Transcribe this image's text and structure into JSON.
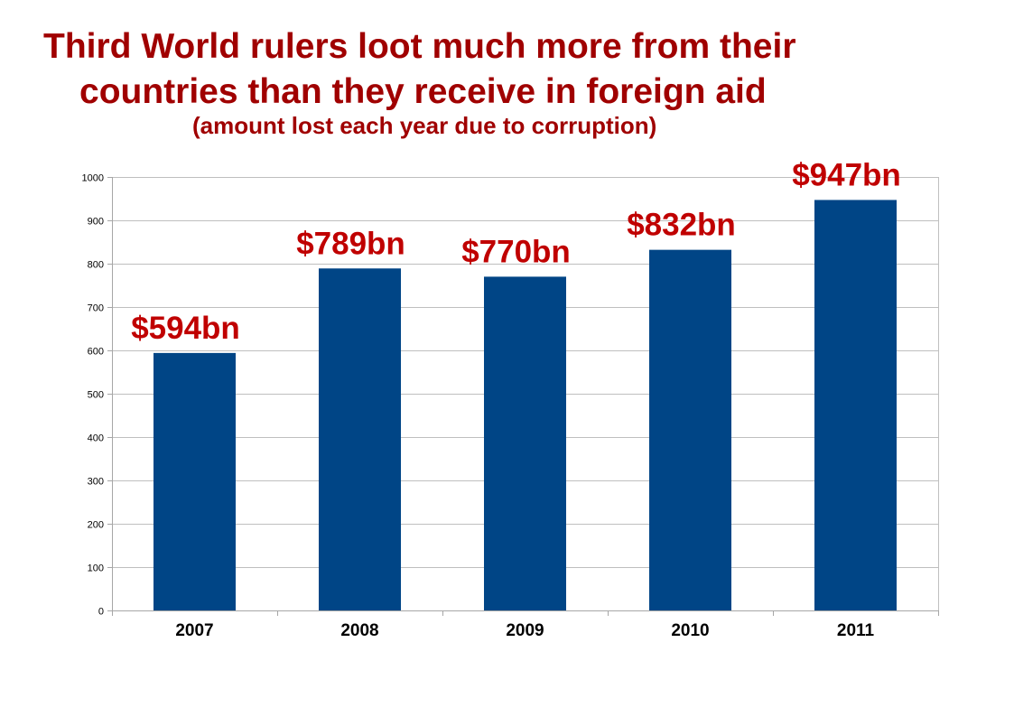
{
  "title": {
    "line1": "Third World rulers loot much more from their",
    "line2": "countries than they receive in foreign aid",
    "subtitle": "(amount lost each year due to corruption)"
  },
  "colors": {
    "title": "#a00000",
    "bar": "#004586",
    "data_label": "#c00000"
  },
  "chart_data": {
    "type": "bar",
    "categories": [
      "2007",
      "2008",
      "2009",
      "2010",
      "2011"
    ],
    "values": [
      594,
      789,
      770,
      832,
      947
    ],
    "data_labels": [
      "$594bn",
      "$789bn",
      "$770bn",
      "$832bn",
      "$947bn"
    ],
    "yticks": [
      "0",
      "100",
      "200",
      "300",
      "400",
      "500",
      "600",
      "700",
      "800",
      "900",
      "1000"
    ],
    "ylim": [
      0,
      1000
    ],
    "grid": true,
    "legend": "none",
    "xlabel": "",
    "ylabel": ""
  }
}
